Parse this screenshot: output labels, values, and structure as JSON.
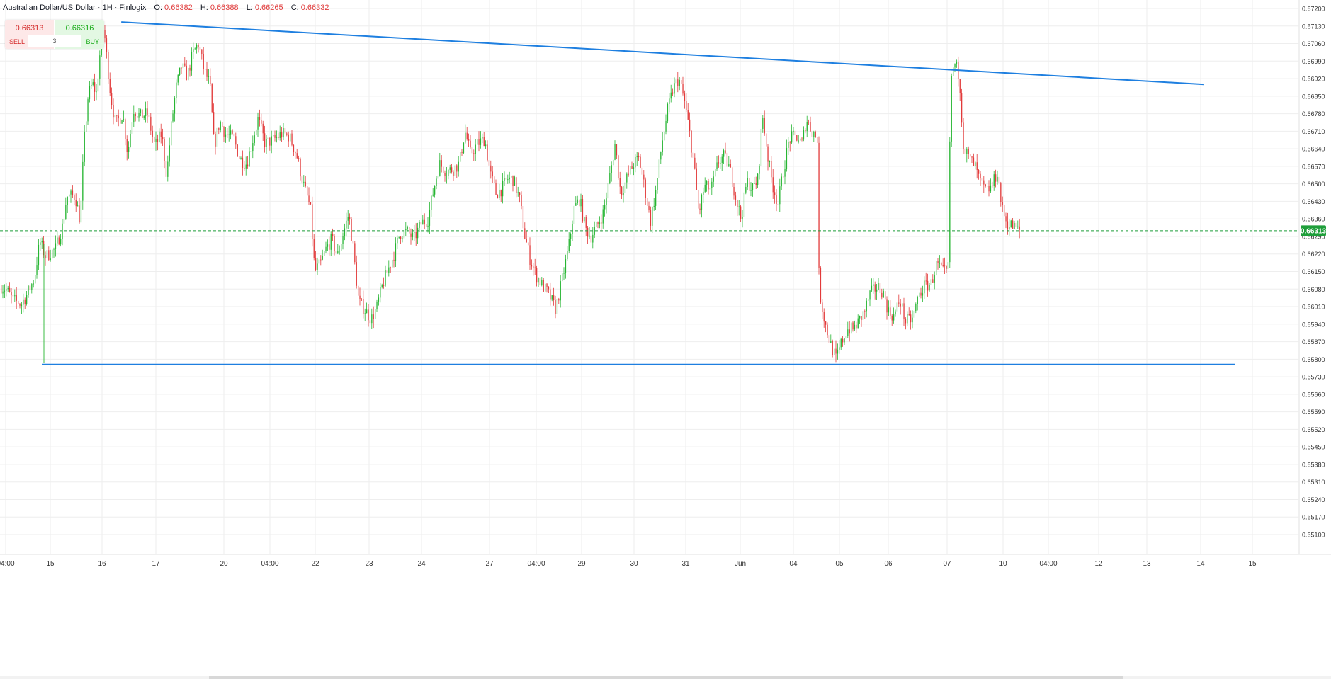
{
  "header": {
    "symbol": "Australian Dollar/US Dollar · 1H · Finlogix",
    "open_label": "O:",
    "open": "0.66382",
    "high_label": "H:",
    "high": "0.66388",
    "low_label": "L:",
    "low": "0.66265",
    "close_label": "C:",
    "close": "0.66332"
  },
  "trade_panel": {
    "sell_price": "0.66313",
    "sell_label": "SELL",
    "buy_price": "0.66316",
    "buy_label": "BUY",
    "quantity": "3"
  },
  "colors": {
    "up": "#26b532",
    "down": "#e23a3a",
    "trendline": "#1e7fe0",
    "grid": "#eeeeee",
    "price_tag": "#1e9e3a"
  },
  "chart_data": {
    "type": "candlestick",
    "symbol": "AUD/USD",
    "timeframe": "1H",
    "y_ticks": [
      "0.67200",
      "0.67130",
      "0.67060",
      "0.66990",
      "0.66920",
      "0.66850",
      "0.66780",
      "0.66710",
      "0.66640",
      "0.66570",
      "0.66500",
      "0.66430",
      "0.66360",
      "0.66290",
      "0.66220",
      "0.66150",
      "0.66080",
      "0.66010",
      "0.65940",
      "0.65870",
      "0.65800",
      "0.65730",
      "0.65660",
      "0.65590",
      "0.65520",
      "0.65450",
      "0.65380",
      "0.65310",
      "0.65240",
      "0.65170",
      "0.65100"
    ],
    "x_ticks": [
      "04:00",
      "15",
      "16",
      "17",
      "20",
      "04:00",
      "22",
      "23",
      "24",
      "27",
      "04:00",
      "29",
      "30",
      "31",
      "Jun",
      "04",
      "05",
      "06",
      "07",
      "10",
      "04:00",
      "12",
      "13",
      "14",
      "15"
    ],
    "current_price": "0.66313",
    "ylim": [
      0.6504,
      0.6724
    ],
    "path_points": [
      [
        0,
        0.66095
      ],
      [
        10,
        0.6608
      ],
      [
        20,
        0.66035
      ],
      [
        32,
        0.6602
      ],
      [
        40,
        0.6606
      ],
      [
        50,
        0.6612
      ],
      [
        58,
        0.6627
      ],
      [
        66,
        0.6621
      ],
      [
        80,
        0.6624
      ],
      [
        90,
        0.6633
      ],
      [
        96,
        0.6645
      ],
      [
        108,
        0.6645
      ],
      [
        115,
        0.6635
      ],
      [
        120,
        0.6665
      ],
      [
        126,
        0.6685
      ],
      [
        132,
        0.669
      ],
      [
        138,
        0.6686
      ],
      [
        142,
        0.67
      ],
      [
        148,
        0.6713
      ],
      [
        158,
        0.6685
      ],
      [
        165,
        0.6674
      ],
      [
        175,
        0.6678
      ],
      [
        182,
        0.6662
      ],
      [
        190,
        0.668
      ],
      [
        200,
        0.6677
      ],
      [
        210,
        0.6678
      ],
      [
        220,
        0.6665
      ],
      [
        230,
        0.667
      ],
      [
        237,
        0.6653
      ],
      [
        243,
        0.6672
      ],
      [
        250,
        0.6688
      ],
      [
        258,
        0.6697
      ],
      [
        266,
        0.6693
      ],
      [
        274,
        0.6702
      ],
      [
        282,
        0.6706
      ],
      [
        290,
        0.6695
      ],
      [
        298,
        0.669
      ],
      [
        304,
        0.6665
      ],
      [
        312,
        0.6675
      ],
      [
        320,
        0.667
      ],
      [
        332,
        0.6668
      ],
      [
        340,
        0.666
      ],
      [
        350,
        0.6658
      ],
      [
        358,
        0.6667
      ],
      [
        366,
        0.6676
      ],
      [
        376,
        0.6666
      ],
      [
        390,
        0.6668
      ],
      [
        400,
        0.667
      ],
      [
        410,
        0.6669
      ],
      [
        420,
        0.6662
      ],
      [
        430,
        0.665
      ],
      [
        440,
        0.664
      ],
      [
        446,
        0.6615
      ],
      [
        454,
        0.6618
      ],
      [
        462,
        0.6624
      ],
      [
        470,
        0.6628
      ],
      [
        478,
        0.6621
      ],
      [
        486,
        0.663
      ],
      [
        494,
        0.6638
      ],
      [
        500,
        0.6625
      ],
      [
        508,
        0.6603
      ],
      [
        516,
        0.66
      ],
      [
        526,
        0.6596
      ],
      [
        534,
        0.6601
      ],
      [
        542,
        0.661
      ],
      [
        550,
        0.6616
      ],
      [
        558,
        0.6622
      ],
      [
        566,
        0.663
      ],
      [
        576,
        0.6631
      ],
      [
        586,
        0.6628
      ],
      [
        596,
        0.6634
      ],
      [
        606,
        0.6636
      ],
      [
        614,
        0.6648
      ],
      [
        622,
        0.6658
      ],
      [
        632,
        0.6655
      ],
      [
        642,
        0.6656
      ],
      [
        650,
        0.6658
      ],
      [
        658,
        0.6671
      ],
      [
        666,
        0.6662
      ],
      [
        676,
        0.6666
      ],
      [
        686,
        0.6668
      ],
      [
        694,
        0.6654
      ],
      [
        702,
        0.6646
      ],
      [
        710,
        0.6648
      ],
      [
        718,
        0.6652
      ],
      [
        726,
        0.6652
      ],
      [
        736,
        0.6643
      ],
      [
        742,
        0.663
      ],
      [
        750,
        0.662
      ],
      [
        758,
        0.6614
      ],
      [
        766,
        0.661
      ],
      [
        776,
        0.6606
      ],
      [
        786,
        0.66
      ],
      [
        794,
        0.661
      ],
      [
        804,
        0.6624
      ],
      [
        812,
        0.664
      ],
      [
        820,
        0.6644
      ],
      [
        828,
        0.6632
      ],
      [
        836,
        0.6629
      ],
      [
        846,
        0.6634
      ],
      [
        854,
        0.6639
      ],
      [
        862,
        0.6652
      ],
      [
        870,
        0.6666
      ],
      [
        878,
        0.6646
      ],
      [
        888,
        0.6653
      ],
      [
        896,
        0.6658
      ],
      [
        904,
        0.666
      ],
      [
        912,
        0.6648
      ],
      [
        920,
        0.6635
      ],
      [
        928,
        0.6648
      ],
      [
        936,
        0.6666
      ],
      [
        944,
        0.6679
      ],
      [
        952,
        0.6688
      ],
      [
        960,
        0.6692
      ],
      [
        968,
        0.6683
      ],
      [
        976,
        0.6669
      ],
      [
        982,
        0.6656
      ],
      [
        988,
        0.6638
      ],
      [
        996,
        0.6649
      ],
      [
        1006,
        0.6648
      ],
      [
        1016,
        0.6659
      ],
      [
        1024,
        0.6661
      ],
      [
        1032,
        0.6656
      ],
      [
        1040,
        0.6645
      ],
      [
        1048,
        0.6636
      ],
      [
        1056,
        0.6651
      ],
      [
        1064,
        0.6648
      ],
      [
        1072,
        0.6652
      ],
      [
        1078,
        0.6678
      ],
      [
        1086,
        0.666
      ],
      [
        1092,
        0.665
      ],
      [
        1100,
        0.6642
      ],
      [
        1108,
        0.6656
      ],
      [
        1116,
        0.6668
      ],
      [
        1126,
        0.6669
      ],
      [
        1134,
        0.6666
      ],
      [
        1140,
        0.6676
      ],
      [
        1148,
        0.6671
      ],
      [
        1156,
        0.6668
      ],
      [
        1158,
        0.6608
      ],
      [
        1166,
        0.6595
      ],
      [
        1174,
        0.6586
      ],
      [
        1182,
        0.658
      ],
      [
        1190,
        0.6587
      ],
      [
        1198,
        0.6592
      ],
      [
        1206,
        0.6592
      ],
      [
        1214,
        0.6595
      ],
      [
        1222,
        0.6599
      ],
      [
        1230,
        0.6606
      ],
      [
        1240,
        0.6609
      ],
      [
        1248,
        0.6607
      ],
      [
        1256,
        0.6599
      ],
      [
        1264,
        0.6597
      ],
      [
        1272,
        0.6604
      ],
      [
        1280,
        0.6595
      ],
      [
        1290,
        0.6596
      ],
      [
        1298,
        0.6605
      ],
      [
        1306,
        0.6609
      ],
      [
        1316,
        0.661
      ],
      [
        1324,
        0.6618
      ],
      [
        1332,
        0.6615
      ],
      [
        1340,
        0.6614
      ],
      [
        1344,
        0.6692
      ],
      [
        1350,
        0.6698
      ],
      [
        1356,
        0.6693
      ],
      [
        1362,
        0.6665
      ],
      [
        1370,
        0.666
      ],
      [
        1378,
        0.6657
      ],
      [
        1386,
        0.665
      ],
      [
        1394,
        0.6647
      ],
      [
        1402,
        0.6649
      ],
      [
        1410,
        0.6655
      ],
      [
        1416,
        0.664
      ],
      [
        1424,
        0.6634
      ],
      [
        1432,
        0.6633
      ],
      [
        1440,
        0.66313
      ]
    ],
    "trendlines": [
      {
        "name": "resistance",
        "points": [
          [
            145,
            0.67146
          ],
          [
            1440,
            0.66897
          ]
        ]
      },
      {
        "name": "support",
        "points": [
          [
            50,
            0.65779
          ],
          [
            1477,
            0.65779
          ]
        ]
      }
    ]
  }
}
